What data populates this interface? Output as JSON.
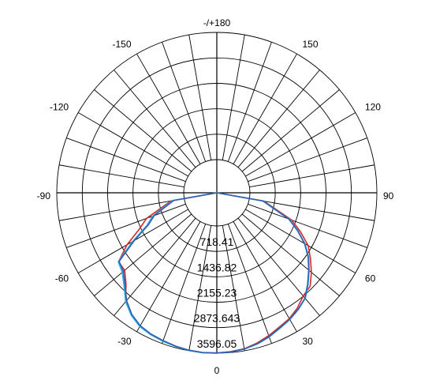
{
  "chart_data": {
    "type": "polar",
    "angle_labels": [
      {
        "deg": 0,
        "text": "0"
      },
      {
        "deg": 30,
        "text": "30"
      },
      {
        "deg": 60,
        "text": "60"
      },
      {
        "deg": 90,
        "text": "90"
      },
      {
        "deg": 120,
        "text": "120"
      },
      {
        "deg": 150,
        "text": "150"
      },
      {
        "deg": 180,
        "text": "-/+180"
      },
      {
        "deg": -150,
        "text": "-150"
      },
      {
        "deg": -120,
        "text": "-120"
      },
      {
        "deg": -90,
        "text": "-90"
      },
      {
        "deg": -60,
        "text": "-60"
      },
      {
        "deg": -30,
        "text": "-30"
      }
    ],
    "radial_ticks": [
      718.41,
      1436.82,
      2155.23,
      2873.643,
      3596.05
    ],
    "radial_tick_labels": [
      "718.41",
      "1436.82",
      "2155.23",
      "2873.643",
      "3596.05"
    ],
    "rmax": 3596.05,
    "grid": true,
    "series": [
      {
        "color": "#d42a2a",
        "points": [
          [
            -90,
            0
          ],
          [
            -80,
            380
          ],
          [
            -70,
            1180
          ],
          [
            -65,
            1480
          ],
          [
            -60,
            2000
          ],
          [
            -55,
            2460
          ],
          [
            -50,
            2470
          ],
          [
            -45,
            2700
          ],
          [
            -40,
            3080
          ],
          [
            -35,
            3280
          ],
          [
            -30,
            3420
          ],
          [
            -25,
            3480
          ],
          [
            -20,
            3520
          ],
          [
            -15,
            3560
          ],
          [
            -10,
            3590
          ],
          [
            -5,
            3600
          ],
          [
            0,
            3595
          ],
          [
            5,
            3570
          ],
          [
            10,
            3540
          ],
          [
            15,
            3460
          ],
          [
            20,
            3360
          ],
          [
            25,
            3250
          ],
          [
            30,
            3170
          ],
          [
            35,
            3040
          ],
          [
            40,
            2870
          ],
          [
            45,
            2800
          ],
          [
            50,
            2560
          ],
          [
            55,
            2300
          ],
          [
            60,
            2050
          ],
          [
            65,
            1680
          ],
          [
            70,
            1320
          ],
          [
            80,
            420
          ],
          [
            90,
            0
          ]
        ]
      },
      {
        "color": "#2fb1e6",
        "points": [
          [
            -90,
            0
          ],
          [
            -80,
            340
          ],
          [
            -70,
            1000
          ],
          [
            -65,
            1250
          ],
          [
            -60,
            1820
          ],
          [
            -55,
            2470
          ],
          [
            -50,
            2560
          ],
          [
            -45,
            2780
          ],
          [
            -40,
            3080
          ],
          [
            -35,
            3290
          ],
          [
            -30,
            3430
          ],
          [
            -25,
            3490
          ],
          [
            -20,
            3530
          ],
          [
            -15,
            3560
          ],
          [
            -10,
            3590
          ],
          [
            -5,
            3600
          ],
          [
            0,
            3595
          ],
          [
            5,
            3580
          ],
          [
            10,
            3550
          ],
          [
            15,
            3490
          ],
          [
            20,
            3400
          ],
          [
            25,
            3290
          ],
          [
            30,
            3200
          ],
          [
            35,
            3090
          ],
          [
            40,
            2960
          ],
          [
            45,
            2720
          ],
          [
            50,
            2480
          ],
          [
            55,
            2240
          ],
          [
            60,
            1950
          ],
          [
            65,
            1600
          ],
          [
            70,
            1250
          ],
          [
            80,
            400
          ],
          [
            90,
            0
          ]
        ]
      },
      {
        "color": "#2f5fb0",
        "points": [
          [
            -90,
            0
          ],
          [
            -80,
            300
          ],
          [
            -70,
            950
          ],
          [
            -65,
            1200
          ],
          [
            -60,
            1760
          ],
          [
            -55,
            2440
          ],
          [
            -50,
            2520
          ],
          [
            -45,
            2740
          ],
          [
            -40,
            3040
          ],
          [
            -35,
            3260
          ],
          [
            -30,
            3400
          ],
          [
            -25,
            3470
          ],
          [
            -20,
            3510
          ],
          [
            -15,
            3550
          ],
          [
            -10,
            3580
          ],
          [
            -5,
            3595
          ],
          [
            0,
            3590
          ],
          [
            5,
            3575
          ],
          [
            10,
            3545
          ],
          [
            15,
            3480
          ],
          [
            20,
            3390
          ],
          [
            25,
            3280
          ],
          [
            30,
            3190
          ],
          [
            35,
            3080
          ],
          [
            40,
            2950
          ],
          [
            45,
            2700
          ],
          [
            50,
            2460
          ],
          [
            55,
            2220
          ],
          [
            60,
            1930
          ],
          [
            65,
            1580
          ],
          [
            70,
            1230
          ],
          [
            80,
            380
          ],
          [
            90,
            0
          ]
        ]
      }
    ]
  }
}
